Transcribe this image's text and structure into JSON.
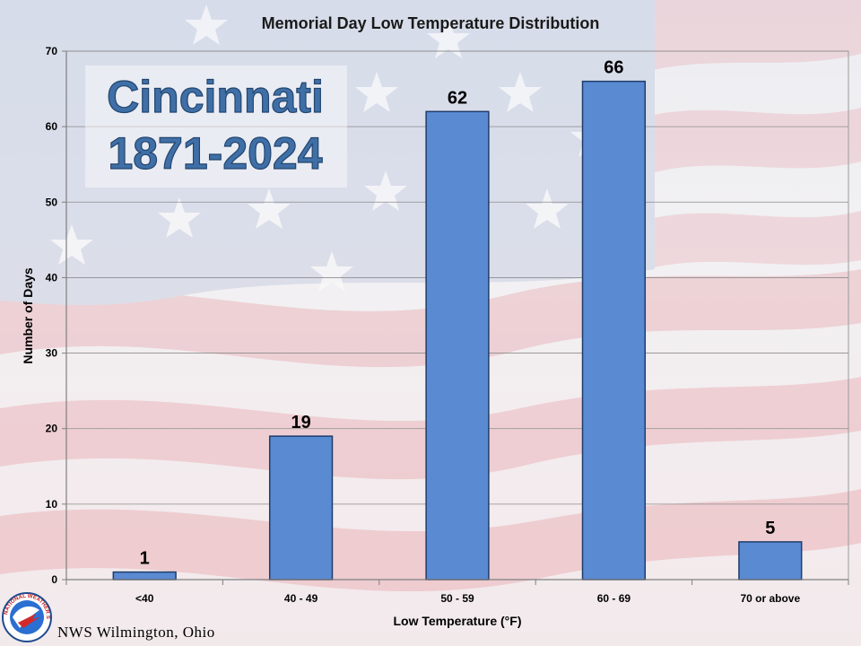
{
  "chart_data": {
    "type": "bar",
    "title": "Memorial Day Low Temperature Distribution",
    "xlabel": "Low Temperature (°F)",
    "ylabel": "Number of Days",
    "categories": [
      "<40",
      "40 - 49",
      "50 - 59",
      "60 - 69",
      "70 or above"
    ],
    "values": [
      1,
      19,
      62,
      66,
      5
    ],
    "data_labels": [
      "1",
      "19",
      "62",
      "66",
      "5"
    ],
    "ylim": [
      0,
      70
    ],
    "yticks": [
      "0",
      "10",
      "20",
      "30",
      "40",
      "50",
      "60",
      "70"
    ],
    "grid": true,
    "legend": "none",
    "bar_color": "#5a8ad2",
    "bar_edge_color": "#1f3d6b"
  },
  "annotation": {
    "city": "Cincinnati",
    "years": "1871-2024"
  },
  "footer": {
    "office": "NWS Wilmington, Ohio",
    "logo_icon": "nws-logo-icon",
    "logo_text": "NATIONAL WEATHER SERVICE"
  },
  "background": {
    "icon": "american-flag-watermark"
  }
}
